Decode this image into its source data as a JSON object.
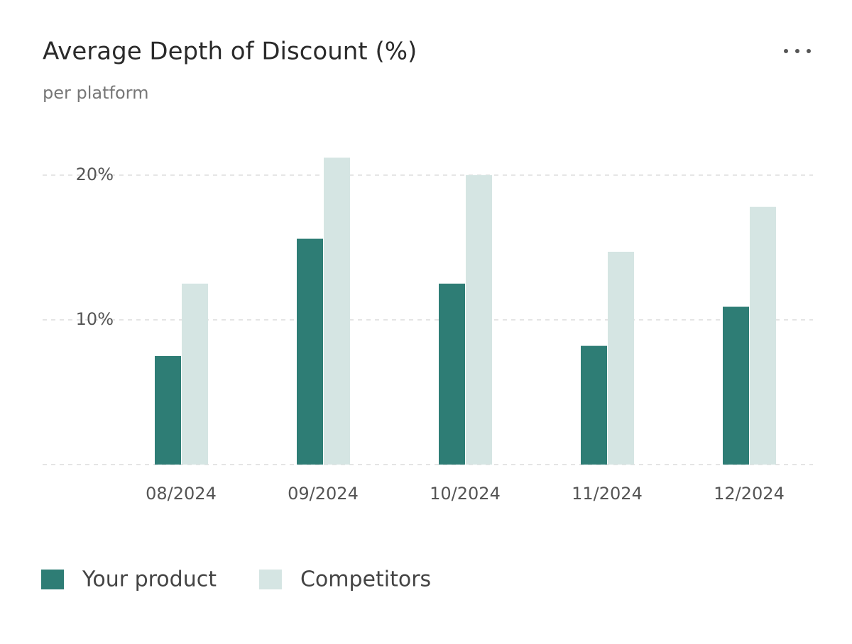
{
  "chart_data": {
    "type": "bar",
    "title": "Average Depth of Discount (%)",
    "subtitle": "per platform",
    "categories": [
      "08/2024",
      "09/2024",
      "10/2024",
      "11/2024",
      "12/2024"
    ],
    "series": [
      {
        "name": "Your product",
        "color": "#2e7d75",
        "values": [
          7.5,
          15.6,
          12.5,
          8.2,
          10.9
        ]
      },
      {
        "name": "Competitors",
        "color": "#d5e5e3",
        "values": [
          12.5,
          21.2,
          20.0,
          14.7,
          17.8
        ]
      }
    ],
    "ylim": [
      0,
      22
    ],
    "yticks": [
      {
        "value": 10,
        "label": "10%"
      },
      {
        "value": 20,
        "label": "20%"
      }
    ],
    "grid": true,
    "legend": "bottom-left"
  }
}
